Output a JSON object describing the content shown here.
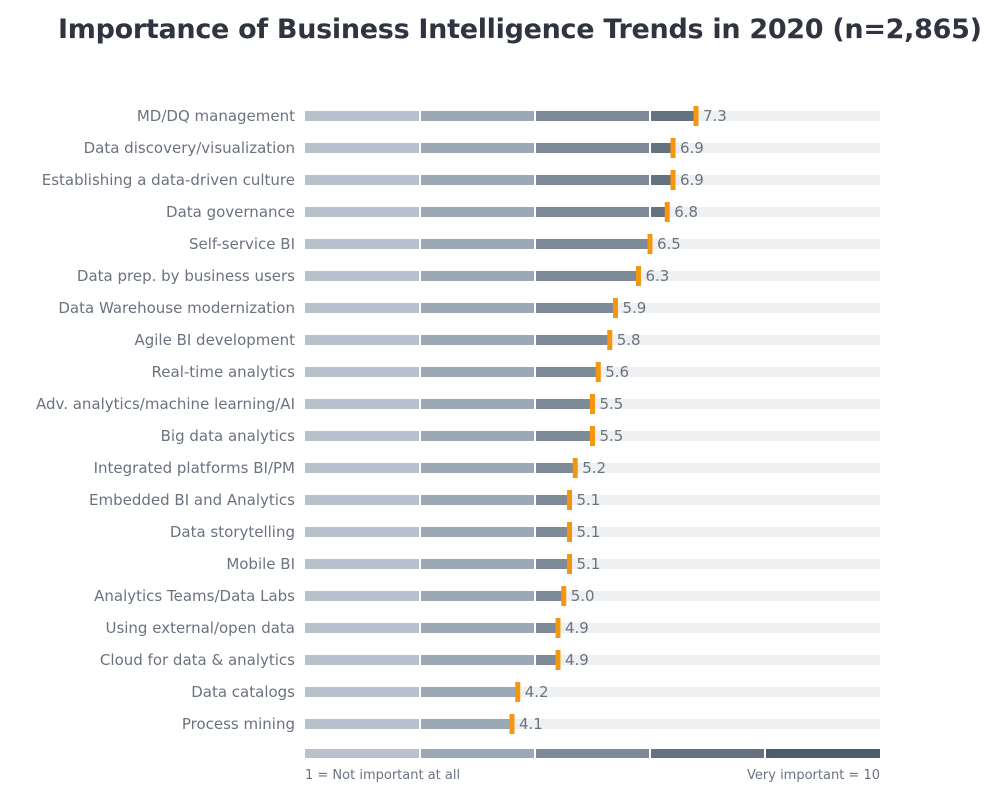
{
  "chart_data": {
    "type": "bar",
    "title": "Importance of Business Intelligence Trends in 2020 (n=2,865)",
    "categories": [
      "MD/DQ management",
      "Data discovery/visualization",
      "Establishing a data-driven culture",
      "Data governance",
      "Self-service BI",
      "Data prep. by business users",
      "Data Warehouse modernization",
      "Agile BI development",
      "Real-time analytics",
      "Adv. analytics/machine learning/AI",
      "Big data analytics",
      "Integrated platforms BI/PM",
      "Embedded BI and Analytics",
      "Data storytelling",
      "Mobile BI",
      "Analytics Teams/Data Labs",
      "Using external/open data",
      "Cloud for data & analytics",
      "Data catalogs",
      "Process mining"
    ],
    "values": [
      7.3,
      6.9,
      6.9,
      6.8,
      6.5,
      6.3,
      5.9,
      5.8,
      5.6,
      5.5,
      5.5,
      5.2,
      5.1,
      5.1,
      5.1,
      5.0,
      4.9,
      4.9,
      4.2,
      4.1
    ],
    "value_labels": [
      "7.3",
      "6.9",
      "6.9",
      "6.8",
      "6.5",
      "6.3",
      "5.9",
      "5.8",
      "5.6",
      "5.5",
      "5.5",
      "5.2",
      "5.1",
      "5.1",
      "5.1",
      "5.0",
      "4.9",
      "4.9",
      "4.2",
      "4.1"
    ],
    "xlim": [
      0.5,
      10.5
    ],
    "scale_min_label": "1 = Not important at all",
    "scale_max_label": "Very important = 10",
    "grid": false,
    "legend": "none"
  },
  "colors": {
    "title": "#2f3440",
    "label_text": "#6b7280",
    "track": "#eff0f2",
    "marker": "#f5960f",
    "segment_shades": [
      "#b9c2cc",
      "#9ca8b3",
      "#7e8b97",
      "#66737f",
      "#4f5d69"
    ],
    "scale_segments": [
      "#b9c2cc",
      "#9ca8b3",
      "#7e8b97",
      "#66737f",
      "#4f5d69"
    ]
  }
}
